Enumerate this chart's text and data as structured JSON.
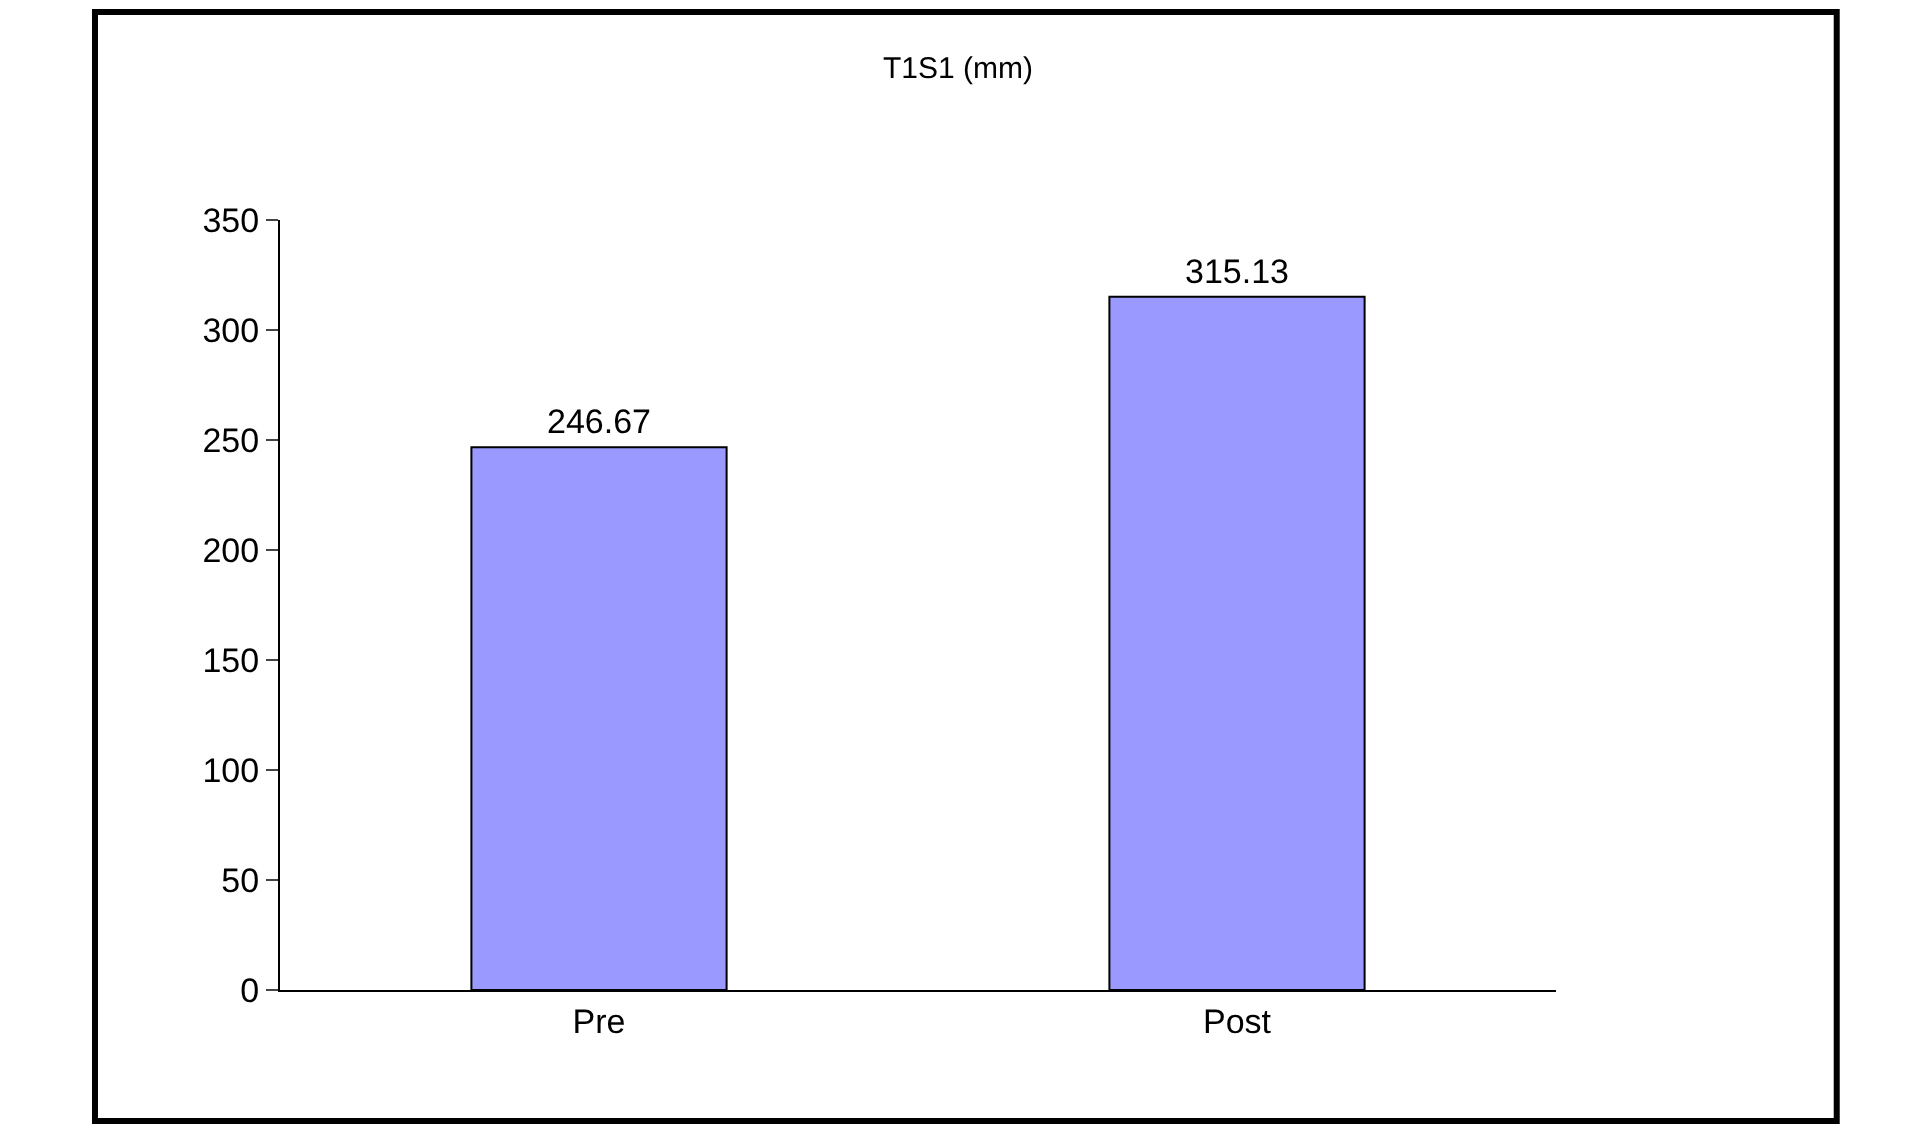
{
  "chart_data": {
    "type": "bar",
    "title": "T1S1 (mm)",
    "categories": [
      "Pre",
      "Post"
    ],
    "values": [
      246.67,
      315.13
    ],
    "color": "#9999ff",
    "ylim": [
      0,
      350
    ],
    "yticks": [
      0,
      50,
      100,
      150,
      200,
      250,
      300,
      350
    ],
    "data_labels": true
  }
}
